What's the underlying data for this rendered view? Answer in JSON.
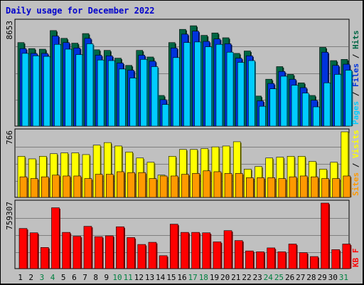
{
  "title": "Daily usage for December 2022",
  "colors": {
    "background": "#c0c0c0",
    "panel_bg": "#c0c0c0",
    "title": "#0000cc",
    "pages": "#00ccff",
    "files": "#0033dd",
    "hits": "#006644",
    "visits": "#ffff00",
    "sites": "#ff9900",
    "kbytes": "#ff0000",
    "weekend_label": "#008040",
    "weekday_label": "#000000",
    "gridline": "#7f7f7f"
  },
  "panel_labels": {
    "top": [
      "Pages",
      "Files",
      "Hits"
    ],
    "middle": [
      "Sites",
      "Visits"
    ],
    "bottom": [
      "KB F"
    ]
  },
  "y_max_labels": {
    "top": "8653",
    "middle": "766",
    "bottom": "759307"
  },
  "chart_data": [
    {
      "type": "bar",
      "title": "Daily usage for December 2022",
      "ylim": [
        0,
        8653
      ],
      "categories": [
        "1",
        "2",
        "3",
        "4",
        "5",
        "6",
        "7",
        "8",
        "9",
        "10",
        "11",
        "12",
        "13",
        "14",
        "15",
        "16",
        "17",
        "18",
        "19",
        "20",
        "21",
        "22",
        "23",
        "24",
        "25",
        "26",
        "27",
        "28",
        "29",
        "30",
        "31"
      ],
      "weekend_days": [
        "3",
        "4",
        "10",
        "11",
        "17",
        "18",
        "24",
        "25",
        "31"
      ],
      "series": [
        {
          "name": "Hits",
          "values": [
            6950,
            6450,
            6400,
            7950,
            7300,
            6900,
            7700,
            6350,
            6300,
            5650,
            5050,
            6300,
            5750,
            2550,
            6950,
            8050,
            8350,
            7550,
            7750,
            7350,
            6050,
            6250,
            2500,
            3900,
            4950,
            4300,
            3600,
            2550,
            6550,
            5450,
            5550
          ]
        },
        {
          "name": "Files",
          "values": [
            6450,
            6050,
            6050,
            7500,
            6950,
            6500,
            7300,
            5900,
            5850,
            5250,
            4650,
            5900,
            5400,
            2200,
            6500,
            7650,
            7900,
            7050,
            7250,
            6850,
            5650,
            5850,
            2100,
            3550,
            4550,
            3900,
            3200,
            2150,
            6150,
            5050,
            5150
          ]
        },
        {
          "name": "Pages",
          "values": [
            6050,
            5850,
            5800,
            6800,
            6400,
            5950,
            6850,
            5500,
            5450,
            4750,
            4000,
            5550,
            4950,
            1800,
            5700,
            6950,
            7000,
            6600,
            6800,
            6150,
            5300,
            5450,
            1650,
            3100,
            4150,
            3400,
            2750,
            1600,
            3600,
            4300,
            4650
          ]
        }
      ]
    },
    {
      "type": "bar",
      "ylim": [
        0,
        766
      ],
      "categories": [
        "1",
        "2",
        "3",
        "4",
        "5",
        "6",
        "7",
        "8",
        "9",
        "10",
        "11",
        "12",
        "13",
        "14",
        "15",
        "16",
        "17",
        "18",
        "19",
        "20",
        "21",
        "22",
        "23",
        "24",
        "25",
        "26",
        "27",
        "28",
        "29",
        "30",
        "31"
      ],
      "series": [
        {
          "name": "Visits",
          "values": [
            480,
            450,
            480,
            510,
            520,
            520,
            500,
            610,
            640,
            600,
            530,
            460,
            410,
            260,
            480,
            560,
            560,
            570,
            590,
            600,
            650,
            330,
            360,
            460,
            470,
            480,
            480,
            420,
            330,
            410,
            766
          ]
        },
        {
          "name": "Sites",
          "values": [
            240,
            220,
            240,
            260,
            250,
            250,
            220,
            270,
            270,
            300,
            290,
            290,
            220,
            250,
            250,
            270,
            280,
            310,
            300,
            280,
            280,
            230,
            230,
            230,
            220,
            240,
            250,
            240,
            220,
            220,
            250
          ]
        }
      ]
    },
    {
      "type": "bar",
      "ylim": [
        0,
        759307
      ],
      "categories": [
        "1",
        "2",
        "3",
        "4",
        "5",
        "6",
        "7",
        "8",
        "9",
        "10",
        "11",
        "12",
        "13",
        "14",
        "15",
        "16",
        "17",
        "18",
        "19",
        "20",
        "21",
        "22",
        "23",
        "24",
        "25",
        "26",
        "27",
        "28",
        "29",
        "30",
        "31"
      ],
      "series": [
        {
          "name": "KB F",
          "values": [
            465000,
            415000,
            245000,
            705000,
            420000,
            375000,
            490000,
            370000,
            380000,
            485000,
            360000,
            280000,
            305000,
            150000,
            515000,
            420000,
            420000,
            415000,
            310000,
            440000,
            325000,
            205000,
            195000,
            240000,
            195000,
            285000,
            185000,
            140000,
            759307,
            220000,
            285000
          ]
        }
      ]
    }
  ]
}
